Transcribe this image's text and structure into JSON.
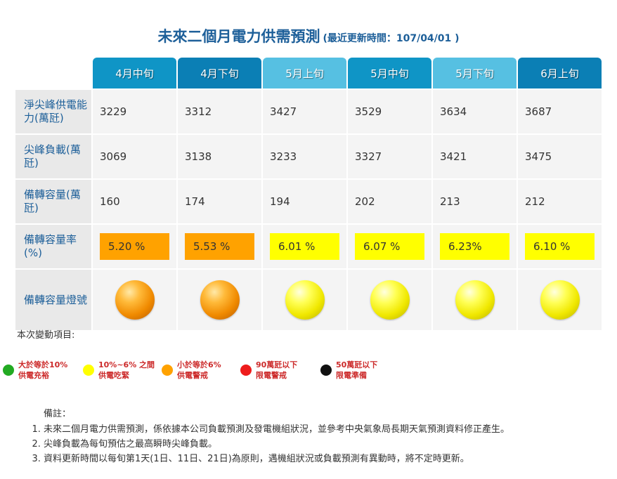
{
  "title": {
    "main": "未來二個月電力供需預測",
    "subtitle": "(最近更新時間：107/04/01 )"
  },
  "columns": [
    {
      "label": "4月中旬",
      "color": "#0f95c6"
    },
    {
      "label": "4月下旬",
      "color": "#0b7fb5"
    },
    {
      "label": "5月上旬",
      "color": "#56c0e2"
    },
    {
      "label": "5月中旬",
      "color": "#0f95c6"
    },
    {
      "label": "5月下旬",
      "color": "#56c0e2"
    },
    {
      "label": "6月上旬",
      "color": "#0b7fb5"
    }
  ],
  "rows": {
    "capacity": {
      "label": "淨尖峰供電能力(萬瓩)",
      "values": [
        "3229",
        "3312",
        "3427",
        "3529",
        "3634",
        "3687"
      ]
    },
    "peak_load": {
      "label": "尖峰負載(萬瓩)",
      "values": [
        "3069",
        "3138",
        "3233",
        "3327",
        "3421",
        "3475"
      ]
    },
    "reserve": {
      "label": "備轉容量(萬瓩)",
      "values": [
        "160",
        "174",
        "194",
        "202",
        "213",
        "212"
      ]
    },
    "reserve_rate": {
      "label": "備轉容量率(%)",
      "values": [
        "5.20 %",
        "5.53 %",
        "6.01 %",
        "6.07 %",
        "6.23%",
        "6.10 %"
      ],
      "colors": [
        "#ffa200",
        "#ffa200",
        "#ffff00",
        "#ffff00",
        "#ffff00",
        "#ffff00"
      ]
    },
    "lamp": {
      "label": "備轉容量燈號",
      "lamps": [
        "orange",
        "orange",
        "yellow",
        "yellow",
        "yellow",
        "yellow"
      ]
    }
  },
  "change_label": "本次變動項目:",
  "legend": [
    {
      "line1": "大於等於10%",
      "line2": "供電充裕",
      "color": "#22aa22"
    },
    {
      "line1": "10%~6% 之間",
      "line2": "供電吃緊",
      "color": "#ffff00"
    },
    {
      "line1": "小於等於6%",
      "line2": "供電警戒",
      "color": "#ffa200"
    },
    {
      "line1": "90萬瓩以下",
      "line2": "限電警戒",
      "color": "#ee1c1c"
    },
    {
      "line1": "50萬瓩以下",
      "line2": "限電準備",
      "color": "#111111"
    }
  ],
  "notes": {
    "title": "備註：",
    "items": [
      "未來二個月電力供需預測，係依據本公司負載預測及發電機組狀況，並參考中央氣象局長期天氣預測資料修正產生。",
      "尖峰負載為每旬預估之最高瞬時尖峰負載。",
      "資料更新時間以每旬第1天(1日、11日、21日)為原則，遇機組狀況或負載預測有異動時，將不定時更新。"
    ]
  }
}
